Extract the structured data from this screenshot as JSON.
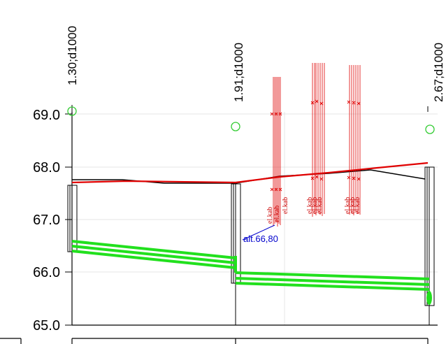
{
  "y_axis": {
    "ticks": [
      {
        "value": 65.0,
        "label": "65.0"
      },
      {
        "value": 66.0,
        "label": "66.0"
      },
      {
        "value": 67.0,
        "label": "67.0"
      },
      {
        "value": 68.0,
        "label": "68.0"
      },
      {
        "value": 69.0,
        "label": "69.0"
      }
    ]
  },
  "wells": [
    {
      "name": "well-1",
      "label": "1.30;d1000",
      "top": 67.65,
      "bottom": 66.38
    },
    {
      "name": "well-2",
      "label": "1.91;d1000",
      "top": 67.68,
      "bottom": 65.79
    },
    {
      "name": "well-3",
      "label": "2.67;d1000",
      "top": 67.98,
      "bottom": 65.38
    }
  ],
  "cable_labels": [
    {
      "text": "el.kab"
    },
    {
      "text": "el.kab"
    },
    {
      "text": "el.kab"
    },
    {
      "text": "el.kab"
    },
    {
      "text": "el.kab"
    },
    {
      "text": "el.kab"
    },
    {
      "text": "el.kab"
    },
    {
      "text": "el.kab"
    },
    {
      "text": "el.kab"
    }
  ],
  "annotation": {
    "text": "alt.66,80"
  },
  "colors": {
    "terrain": "#000000",
    "design_line": "#e00000",
    "pipes": "#22e01e",
    "cables": "#e00000",
    "annotation": "#0000cc",
    "marker": "#33cc33",
    "grid": "#dddddd"
  }
}
